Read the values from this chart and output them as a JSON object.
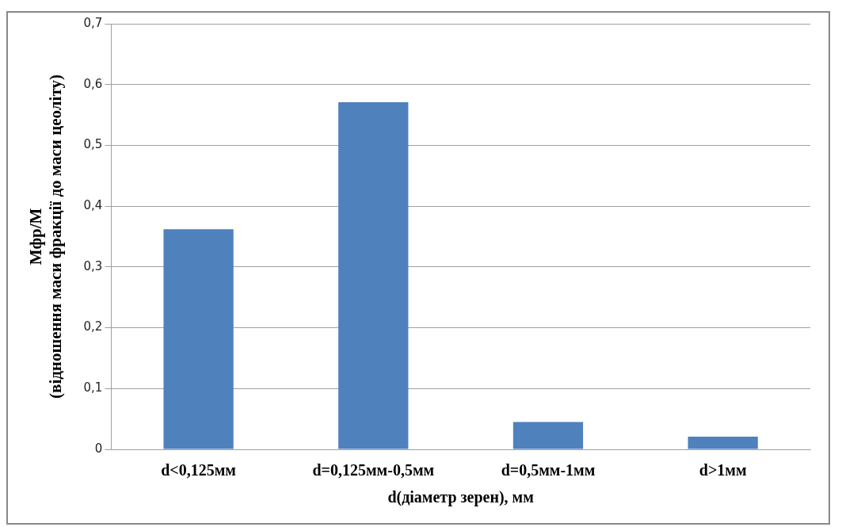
{
  "chart_data": {
    "type": "bar",
    "xlabel": "d(діаметр зерен), мм",
    "ylabel": "Мфр/М\n(відношення маси фракції до маси цеоліту)",
    "categories": [
      "d<0,125мм",
      "d=0,125мм-0,5мм",
      "d=0,5мм-1мм",
      "d>1мм"
    ],
    "values": [
      0.362,
      0.571,
      0.045,
      0.021
    ],
    "color": "#4f81bd",
    "ylim": [
      0,
      0.7
    ],
    "yticks": [
      {
        "value": 0,
        "label": "0"
      },
      {
        "value": 0.1,
        "label": "0,1"
      },
      {
        "value": 0.2,
        "label": "0,2"
      },
      {
        "value": 0.3,
        "label": "0,3"
      },
      {
        "value": 0.4,
        "label": "0,4"
      },
      {
        "value": 0.5,
        "label": "0,5"
      },
      {
        "value": 0.6,
        "label": "0,6"
      },
      {
        "value": 0.7,
        "label": "0,7"
      }
    ],
    "grid": "y",
    "legend": false
  }
}
